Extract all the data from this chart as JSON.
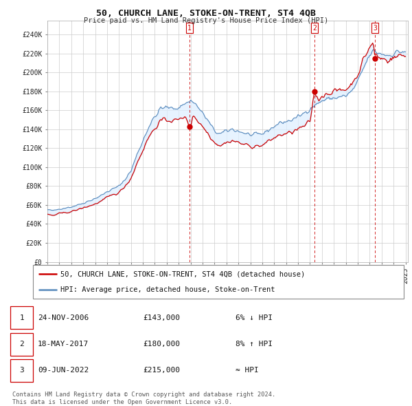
{
  "title": "50, CHURCH LANE, STOKE-ON-TRENT, ST4 4QB",
  "subtitle": "Price paid vs. HM Land Registry's House Price Index (HPI)",
  "ylabel_ticks": [
    "£0",
    "£20K",
    "£40K",
    "£60K",
    "£80K",
    "£100K",
    "£120K",
    "£140K",
    "£160K",
    "£180K",
    "£200K",
    "£220K",
    "£240K"
  ],
  "ytick_values": [
    0,
    20000,
    40000,
    60000,
    80000,
    100000,
    120000,
    140000,
    160000,
    180000,
    200000,
    220000,
    240000
  ],
  "ylim": [
    0,
    255000
  ],
  "xlim_start": 1995.0,
  "xlim_end": 2025.2,
  "sale_color": "#cc0000",
  "hpi_color": "#5588bb",
  "fill_color": "#ddeeff",
  "sale_date_nums": [
    2006.9,
    2017.37,
    2022.44
  ],
  "sale_prices": [
    143000,
    180000,
    215000
  ],
  "sale_labels": [
    "1",
    "2",
    "3"
  ],
  "table_rows": [
    [
      "1",
      "24-NOV-2006",
      "£143,000",
      "6% ↓ HPI"
    ],
    [
      "2",
      "18-MAY-2017",
      "£180,000",
      "8% ↑ HPI"
    ],
    [
      "3",
      "09-JUN-2022",
      "£215,000",
      "≈ HPI"
    ]
  ],
  "legend_sale_label": "50, CHURCH LANE, STOKE-ON-TRENT, ST4 4QB (detached house)",
  "legend_hpi_label": "HPI: Average price, detached house, Stoke-on-Trent",
  "footnote": "Contains HM Land Registry data © Crown copyright and database right 2024.\nThis data is licensed under the Open Government Licence v3.0."
}
